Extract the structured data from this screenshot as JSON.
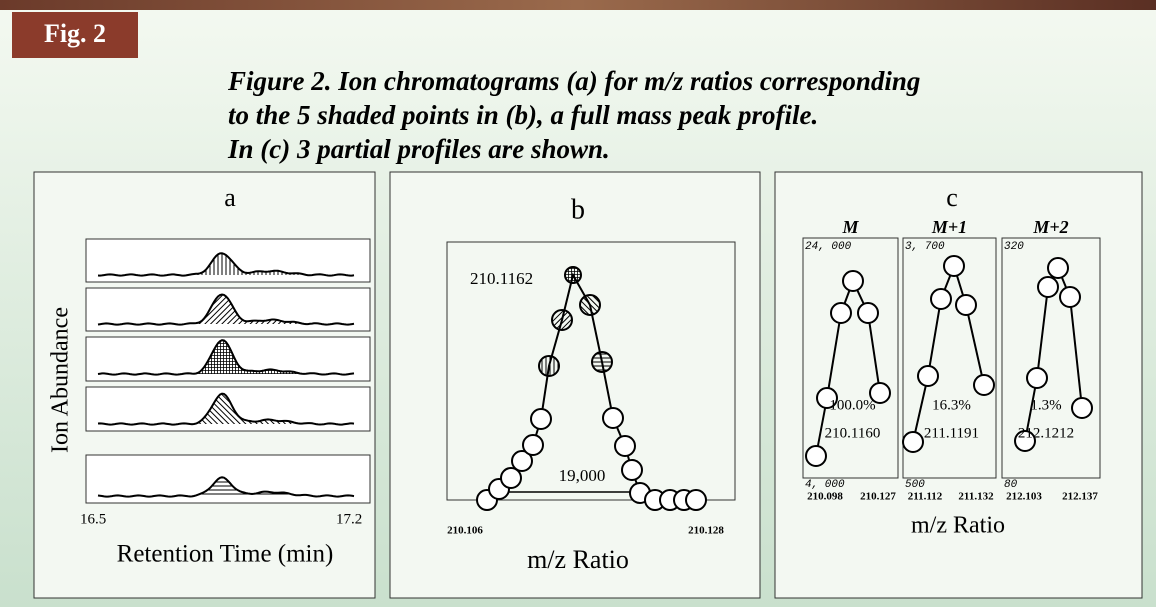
{
  "figure_label": "Fig. 2",
  "caption": [
    "Figure 2.  Ion chromatograms (a) for m/z ratios corresponding",
    "to the 5 shaded points in (b), a full mass peak profile.",
    "In (c) 3 partial profiles are shown."
  ],
  "panels": {
    "a": {
      "label": "a",
      "y_label": "Ion Abundance",
      "x_ticks": [
        "16.5",
        "17.2"
      ],
      "x_label": "Retention Time (min)"
    },
    "b": {
      "label": "b",
      "peak_label": "210.1162",
      "width_label": "19,000",
      "x_ticks": [
        "210.106",
        "210.128"
      ],
      "x_label": "m/z Ratio"
    },
    "c": {
      "label": "c",
      "x_label": "m/z Ratio",
      "profiles": [
        {
          "name": "M",
          "y_top": "24, 000",
          "y_bottom": "4, 000",
          "percent": "100.0%",
          "mass": "210.1160",
          "x_ticks": [
            "210.098",
            "210.127"
          ]
        },
        {
          "name": "M+1",
          "y_top": "3, 700",
          "y_bottom": "500",
          "percent": "16.3%",
          "mass": "211.1191",
          "x_ticks": [
            "211.112",
            "211.132"
          ]
        },
        {
          "name": "M+2",
          "y_top": "320",
          "y_bottom": "80",
          "percent": "1.3%",
          "mass": "212.1212",
          "x_ticks": [
            "212.103",
            "212.137"
          ]
        }
      ]
    }
  }
}
